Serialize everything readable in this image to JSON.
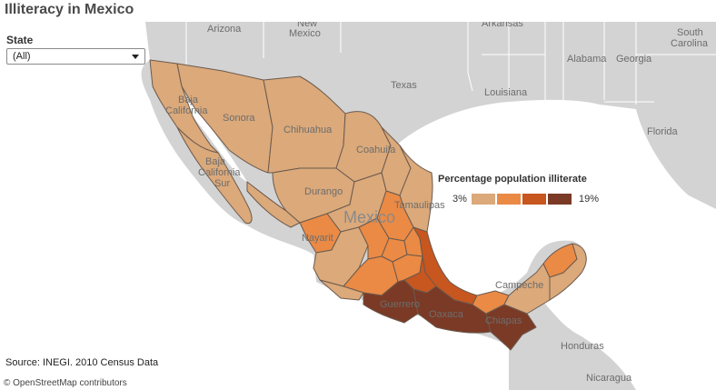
{
  "title": "Illiteracy in Mexico",
  "filter": {
    "label": "State",
    "selected": "(All)"
  },
  "legend": {
    "title": "Percentage population illiterate",
    "min_label": "3%",
    "max_label": "19%",
    "colors": [
      "#dba97a",
      "#ea8a45",
      "#c7561f",
      "#7a3a26"
    ]
  },
  "source": "Source: INEGI. 2010 Census Data",
  "attribution": "© OpenStreetMap contributors",
  "colors": {
    "land": "#d3d3d3",
    "water": "#ffffff",
    "mexico_light": "#dba97a",
    "mexico_orange": "#ea8a45",
    "mexico_dark_orange": "#c7561f",
    "mexico_darkest": "#7a3a26",
    "state_border": "#6b5a4e"
  },
  "map_labels": {
    "arizona": "Arizona",
    "new_mexico_1": "New",
    "new_mexico_2": "Mexico",
    "arkansas": "Arkansas",
    "south_carolina_1": "South",
    "south_carolina_2": "Carolina",
    "texas": "Texas",
    "louisiana": "Louisiana",
    "alabama": "Alabama",
    "georgia": "Georgia",
    "florida": "Florida",
    "baja_california_1": "Baja",
    "baja_california_2": "California",
    "sonora": "Sonora",
    "chihuahua": "Chihuahua",
    "coahuila": "Coahuila",
    "durango": "Durango",
    "tamaulipas": "Tamaulipas",
    "baja_california_sur_1": "Baja",
    "baja_california_sur_2": "California",
    "baja_california_sur_3": "Sur",
    "mexico": "Mexico",
    "nayarit": "Nayarit",
    "guerrero": "Guerrero",
    "oaxaca": "Oaxaca",
    "chiapas": "Chiapas",
    "campeche": "Campeche",
    "honduras": "Honduras",
    "nicaragua": "Nicaragua"
  }
}
